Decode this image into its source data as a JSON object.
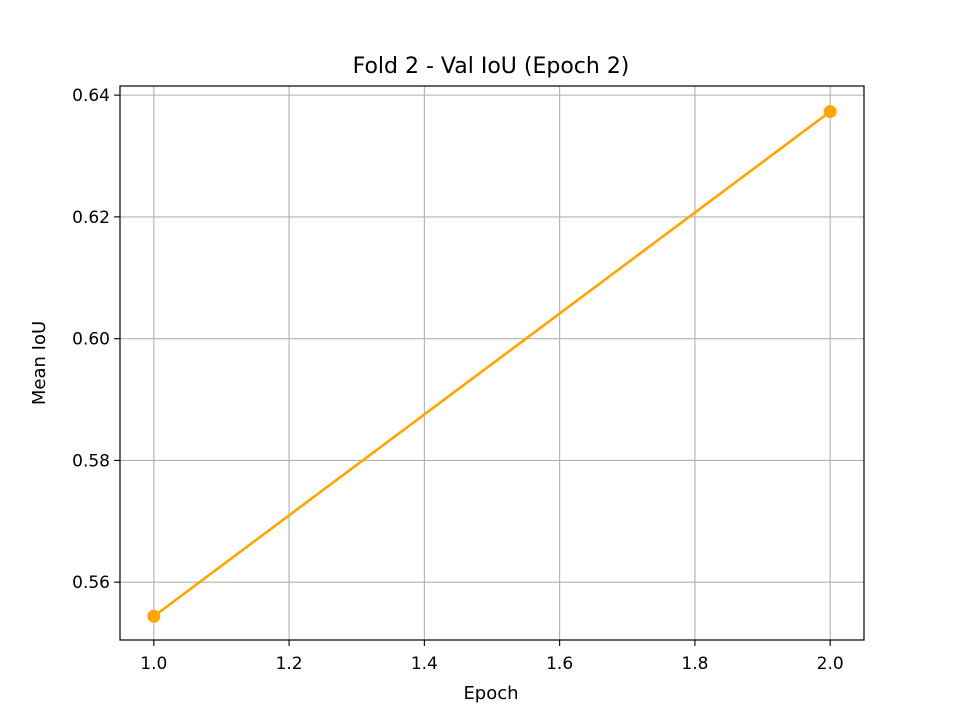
{
  "chart_data": {
    "type": "line",
    "title": "Fold 2 - Val IoU (Epoch 2)",
    "xlabel": "Epoch",
    "ylabel": "Mean IoU",
    "xlim": [
      0.95,
      2.05
    ],
    "ylim": [
      0.5505,
      0.6415
    ],
    "xticks": [
      1.0,
      1.2,
      1.4,
      1.6,
      1.8,
      2.0
    ],
    "xtick_labels": [
      "1.0",
      "1.2",
      "1.4",
      "1.6",
      "1.8",
      "2.0"
    ],
    "yticks": [
      0.56,
      0.58,
      0.6,
      0.62,
      0.64
    ],
    "ytick_labels": [
      "0.56",
      "0.58",
      "0.60",
      "0.62",
      "0.64"
    ],
    "grid": true,
    "series": [
      {
        "color": "#ffa500",
        "marker": "circle",
        "x": [
          1.0,
          2.0
        ],
        "y": [
          0.5544,
          0.6373
        ]
      }
    ]
  }
}
